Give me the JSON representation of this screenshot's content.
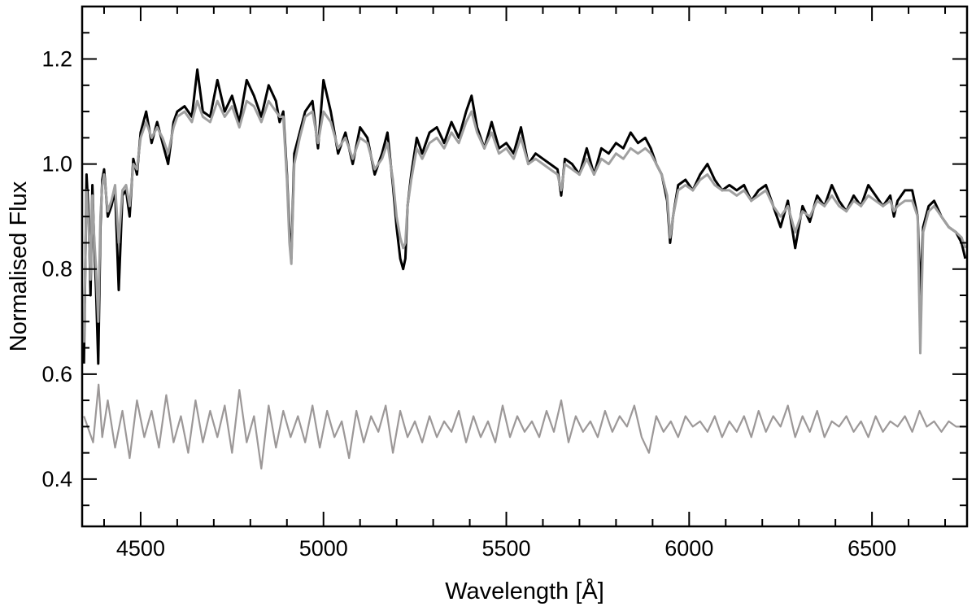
{
  "chart_data": {
    "type": "line",
    "title": "",
    "xlabel": "Wavelength [Å]",
    "ylabel": "Normalised Flux",
    "xlim": [
      4340,
      6760
    ],
    "ylim": [
      0.31,
      1.3
    ],
    "xticks": [
      4500,
      5000,
      5500,
      6000,
      6500
    ],
    "xtick_labels": [
      "4500",
      "5000",
      "5500",
      "6000",
      "6500"
    ],
    "yticks": [
      0.4,
      0.6,
      0.8,
      1.0,
      1.2
    ],
    "ytick_labels": [
      "0.4",
      "0.6",
      "0.8",
      "1.0",
      "1.2"
    ],
    "x_minor_step": 100,
    "y_minor_step": 0.05,
    "grid": false,
    "legend": "none",
    "series": [
      {
        "role": "observed",
        "color": "#000000",
        "x": [
          4345,
          4352,
          4358,
          4363,
          4368,
          4373,
          4378,
          4384,
          4390,
          4395,
          4400,
          4410,
          4420,
          4430,
          4440,
          4450,
          4460,
          4470,
          4480,
          4490,
          4500,
          4515,
          4530,
          4545,
          4560,
          4575,
          4590,
          4600,
          4620,
          4640,
          4655,
          4670,
          4690,
          4710,
          4730,
          4750,
          4770,
          4790,
          4810,
          4830,
          4850,
          4870,
          4880,
          4890,
          4900,
          4907,
          4912,
          4920,
          4935,
          4950,
          4970,
          4985,
          5000,
          5020,
          5040,
          5060,
          5080,
          5100,
          5120,
          5140,
          5160,
          5175,
          5190,
          5200,
          5210,
          5218,
          5224,
          5230,
          5240,
          5255,
          5270,
          5290,
          5310,
          5330,
          5350,
          5370,
          5390,
          5405,
          5420,
          5440,
          5460,
          5480,
          5500,
          5520,
          5540,
          5560,
          5580,
          5600,
          5620,
          5640,
          5650,
          5660,
          5680,
          5700,
          5720,
          5740,
          5760,
          5780,
          5800,
          5820,
          5840,
          5860,
          5880,
          5895,
          5910,
          5925,
          5940,
          5948,
          5956,
          5970,
          5990,
          6010,
          6030,
          6050,
          6070,
          6090,
          6110,
          6130,
          6150,
          6170,
          6190,
          6210,
          6230,
          6250,
          6270,
          6290,
          6310,
          6330,
          6350,
          6370,
          6390,
          6410,
          6430,
          6450,
          6470,
          6490,
          6510,
          6530,
          6550,
          6560,
          6570,
          6590,
          6610,
          6625,
          6632,
          6640,
          6655,
          6670,
          6690,
          6710,
          6730,
          6745,
          6755
        ],
        "y": [
          0.62,
          0.98,
          0.9,
          0.75,
          0.96,
          0.85,
          0.76,
          0.62,
          0.88,
          0.97,
          0.99,
          0.9,
          0.92,
          0.95,
          0.76,
          0.94,
          0.95,
          0.9,
          1.01,
          0.98,
          1.06,
          1.1,
          1.04,
          1.08,
          1.04,
          1.0,
          1.08,
          1.1,
          1.11,
          1.09,
          1.18,
          1.1,
          1.09,
          1.16,
          1.1,
          1.13,
          1.08,
          1.16,
          1.13,
          1.09,
          1.15,
          1.12,
          1.08,
          1.1,
          0.98,
          0.87,
          0.82,
          1.02,
          1.06,
          1.1,
          1.12,
          1.03,
          1.16,
          1.1,
          1.02,
          1.06,
          1.0,
          1.07,
          1.05,
          0.98,
          1.02,
          1.06,
          0.96,
          0.88,
          0.82,
          0.8,
          0.82,
          0.92,
          0.98,
          1.05,
          1.02,
          1.06,
          1.07,
          1.04,
          1.08,
          1.05,
          1.1,
          1.13,
          1.07,
          1.03,
          1.08,
          1.03,
          1.04,
          1.02,
          1.07,
          1.0,
          1.02,
          1.01,
          1.0,
          0.99,
          0.94,
          1.01,
          1.0,
          0.98,
          1.03,
          0.98,
          1.03,
          1.02,
          1.04,
          1.03,
          1.06,
          1.04,
          1.05,
          1.03,
          1.0,
          0.98,
          0.93,
          0.85,
          0.9,
          0.96,
          0.97,
          0.95,
          0.98,
          1.0,
          0.97,
          0.95,
          0.96,
          0.95,
          0.96,
          0.93,
          0.95,
          0.96,
          0.92,
          0.88,
          0.93,
          0.84,
          0.92,
          0.89,
          0.94,
          0.92,
          0.96,
          0.93,
          0.91,
          0.94,
          0.92,
          0.96,
          0.94,
          0.92,
          0.94,
          0.9,
          0.93,
          0.95,
          0.95,
          0.9,
          0.75,
          0.88,
          0.92,
          0.93,
          0.9,
          0.88,
          0.87,
          0.85,
          0.82
        ]
      },
      {
        "role": "model",
        "color": "#a0a0a0",
        "x": [
          4345,
          4352,
          4358,
          4363,
          4368,
          4373,
          4378,
          4384,
          4390,
          4395,
          4400,
          4410,
          4420,
          4430,
          4440,
          4450,
          4460,
          4470,
          4480,
          4490,
          4500,
          4515,
          4530,
          4545,
          4560,
          4575,
          4590,
          4600,
          4620,
          4640,
          4655,
          4670,
          4690,
          4710,
          4730,
          4750,
          4770,
          4790,
          4810,
          4830,
          4850,
          4870,
          4880,
          4890,
          4900,
          4907,
          4912,
          4920,
          4935,
          4950,
          4970,
          4985,
          5000,
          5020,
          5040,
          5060,
          5080,
          5100,
          5120,
          5140,
          5160,
          5175,
          5190,
          5200,
          5210,
          5218,
          5224,
          5230,
          5240,
          5255,
          5270,
          5290,
          5310,
          5330,
          5350,
          5370,
          5390,
          5405,
          5420,
          5440,
          5460,
          5480,
          5500,
          5520,
          5540,
          5560,
          5580,
          5600,
          5620,
          5640,
          5650,
          5660,
          5680,
          5700,
          5720,
          5740,
          5760,
          5780,
          5800,
          5820,
          5840,
          5860,
          5880,
          5895,
          5910,
          5925,
          5940,
          5948,
          5956,
          5970,
          5990,
          6010,
          6030,
          6050,
          6070,
          6090,
          6110,
          6130,
          6150,
          6170,
          6190,
          6210,
          6230,
          6250,
          6270,
          6290,
          6310,
          6330,
          6350,
          6370,
          6390,
          6410,
          6430,
          6450,
          6470,
          6490,
          6510,
          6530,
          6550,
          6560,
          6570,
          6590,
          6610,
          6625,
          6632,
          6640,
          6655,
          6670,
          6690,
          6710,
          6730,
          6745,
          6755
        ],
        "y": [
          0.66,
          0.95,
          0.88,
          0.78,
          0.94,
          0.86,
          0.8,
          0.7,
          0.9,
          0.96,
          0.98,
          0.91,
          0.93,
          0.96,
          0.85,
          0.95,
          0.96,
          0.92,
          1.0,
          0.99,
          1.05,
          1.08,
          1.05,
          1.07,
          1.05,
          1.02,
          1.07,
          1.09,
          1.1,
          1.08,
          1.12,
          1.09,
          1.08,
          1.12,
          1.09,
          1.11,
          1.07,
          1.12,
          1.11,
          1.08,
          1.12,
          1.1,
          1.09,
          1.09,
          0.97,
          0.85,
          0.81,
          1.0,
          1.05,
          1.09,
          1.1,
          1.04,
          1.1,
          1.08,
          1.03,
          1.05,
          1.01,
          1.05,
          1.04,
          0.99,
          1.01,
          1.04,
          0.97,
          0.9,
          0.86,
          0.84,
          0.85,
          0.92,
          0.97,
          1.03,
          1.01,
          1.04,
          1.05,
          1.03,
          1.06,
          1.04,
          1.08,
          1.1,
          1.06,
          1.03,
          1.06,
          1.02,
          1.03,
          1.01,
          1.05,
          1.0,
          1.01,
          1.0,
          0.99,
          0.98,
          0.95,
          1.0,
          0.99,
          0.98,
          1.01,
          0.98,
          1.01,
          1.0,
          1.02,
          1.01,
          1.03,
          1.02,
          1.03,
          1.02,
          1.0,
          0.98,
          0.94,
          0.86,
          0.9,
          0.95,
          0.96,
          0.95,
          0.97,
          0.98,
          0.96,
          0.95,
          0.95,
          0.94,
          0.95,
          0.93,
          0.94,
          0.95,
          0.92,
          0.9,
          0.92,
          0.87,
          0.91,
          0.9,
          0.93,
          0.92,
          0.94,
          0.92,
          0.91,
          0.93,
          0.92,
          0.94,
          0.93,
          0.92,
          0.93,
          0.91,
          0.92,
          0.93,
          0.93,
          0.9,
          0.64,
          0.87,
          0.91,
          0.92,
          0.9,
          0.88,
          0.87,
          0.86,
          0.84
        ]
      },
      {
        "role": "residual",
        "color": "#9c9898",
        "x": [
          4345,
          4370,
          4385,
          4395,
          4410,
          4430,
          4450,
          4470,
          4490,
          4510,
          4530,
          4550,
          4570,
          4590,
          4610,
          4630,
          4650,
          4670,
          4690,
          4710,
          4730,
          4750,
          4770,
          4790,
          4810,
          4830,
          4850,
          4870,
          4890,
          4910,
          4930,
          4950,
          4970,
          4990,
          5010,
          5030,
          5050,
          5070,
          5090,
          5110,
          5130,
          5150,
          5170,
          5190,
          5210,
          5230,
          5250,
          5270,
          5290,
          5310,
          5330,
          5350,
          5370,
          5390,
          5410,
          5430,
          5450,
          5470,
          5490,
          5510,
          5530,
          5550,
          5570,
          5590,
          5610,
          5630,
          5650,
          5670,
          5690,
          5710,
          5730,
          5750,
          5770,
          5790,
          5810,
          5830,
          5850,
          5870,
          5890,
          5910,
          5930,
          5950,
          5970,
          5990,
          6010,
          6030,
          6050,
          6070,
          6090,
          6110,
          6130,
          6150,
          6170,
          6190,
          6210,
          6230,
          6250,
          6270,
          6290,
          6310,
          6330,
          6350,
          6370,
          6390,
          6410,
          6430,
          6450,
          6470,
          6490,
          6510,
          6530,
          6550,
          6570,
          6590,
          6610,
          6630,
          6650,
          6670,
          6690,
          6710,
          6730,
          6755
        ],
        "y": [
          0.52,
          0.47,
          0.58,
          0.48,
          0.55,
          0.46,
          0.53,
          0.44,
          0.55,
          0.48,
          0.53,
          0.46,
          0.56,
          0.47,
          0.52,
          0.45,
          0.55,
          0.47,
          0.53,
          0.48,
          0.54,
          0.45,
          0.57,
          0.47,
          0.52,
          0.42,
          0.54,
          0.46,
          0.53,
          0.48,
          0.52,
          0.47,
          0.54,
          0.46,
          0.53,
          0.48,
          0.51,
          0.44,
          0.53,
          0.47,
          0.52,
          0.49,
          0.54,
          0.45,
          0.53,
          0.48,
          0.51,
          0.47,
          0.52,
          0.48,
          0.51,
          0.49,
          0.53,
          0.47,
          0.52,
          0.48,
          0.51,
          0.47,
          0.54,
          0.48,
          0.52,
          0.49,
          0.51,
          0.48,
          0.53,
          0.49,
          0.55,
          0.47,
          0.52,
          0.49,
          0.51,
          0.48,
          0.53,
          0.49,
          0.52,
          0.5,
          0.54,
          0.48,
          0.45,
          0.52,
          0.49,
          0.51,
          0.48,
          0.52,
          0.5,
          0.51,
          0.49,
          0.52,
          0.48,
          0.51,
          0.49,
          0.52,
          0.48,
          0.53,
          0.49,
          0.52,
          0.5,
          0.54,
          0.48,
          0.52,
          0.49,
          0.53,
          0.48,
          0.51,
          0.5,
          0.52,
          0.49,
          0.51,
          0.48,
          0.52,
          0.49,
          0.51,
          0.5,
          0.52,
          0.49,
          0.53,
          0.5,
          0.51,
          0.49,
          0.51,
          0.5,
          0.5
        ]
      }
    ]
  }
}
